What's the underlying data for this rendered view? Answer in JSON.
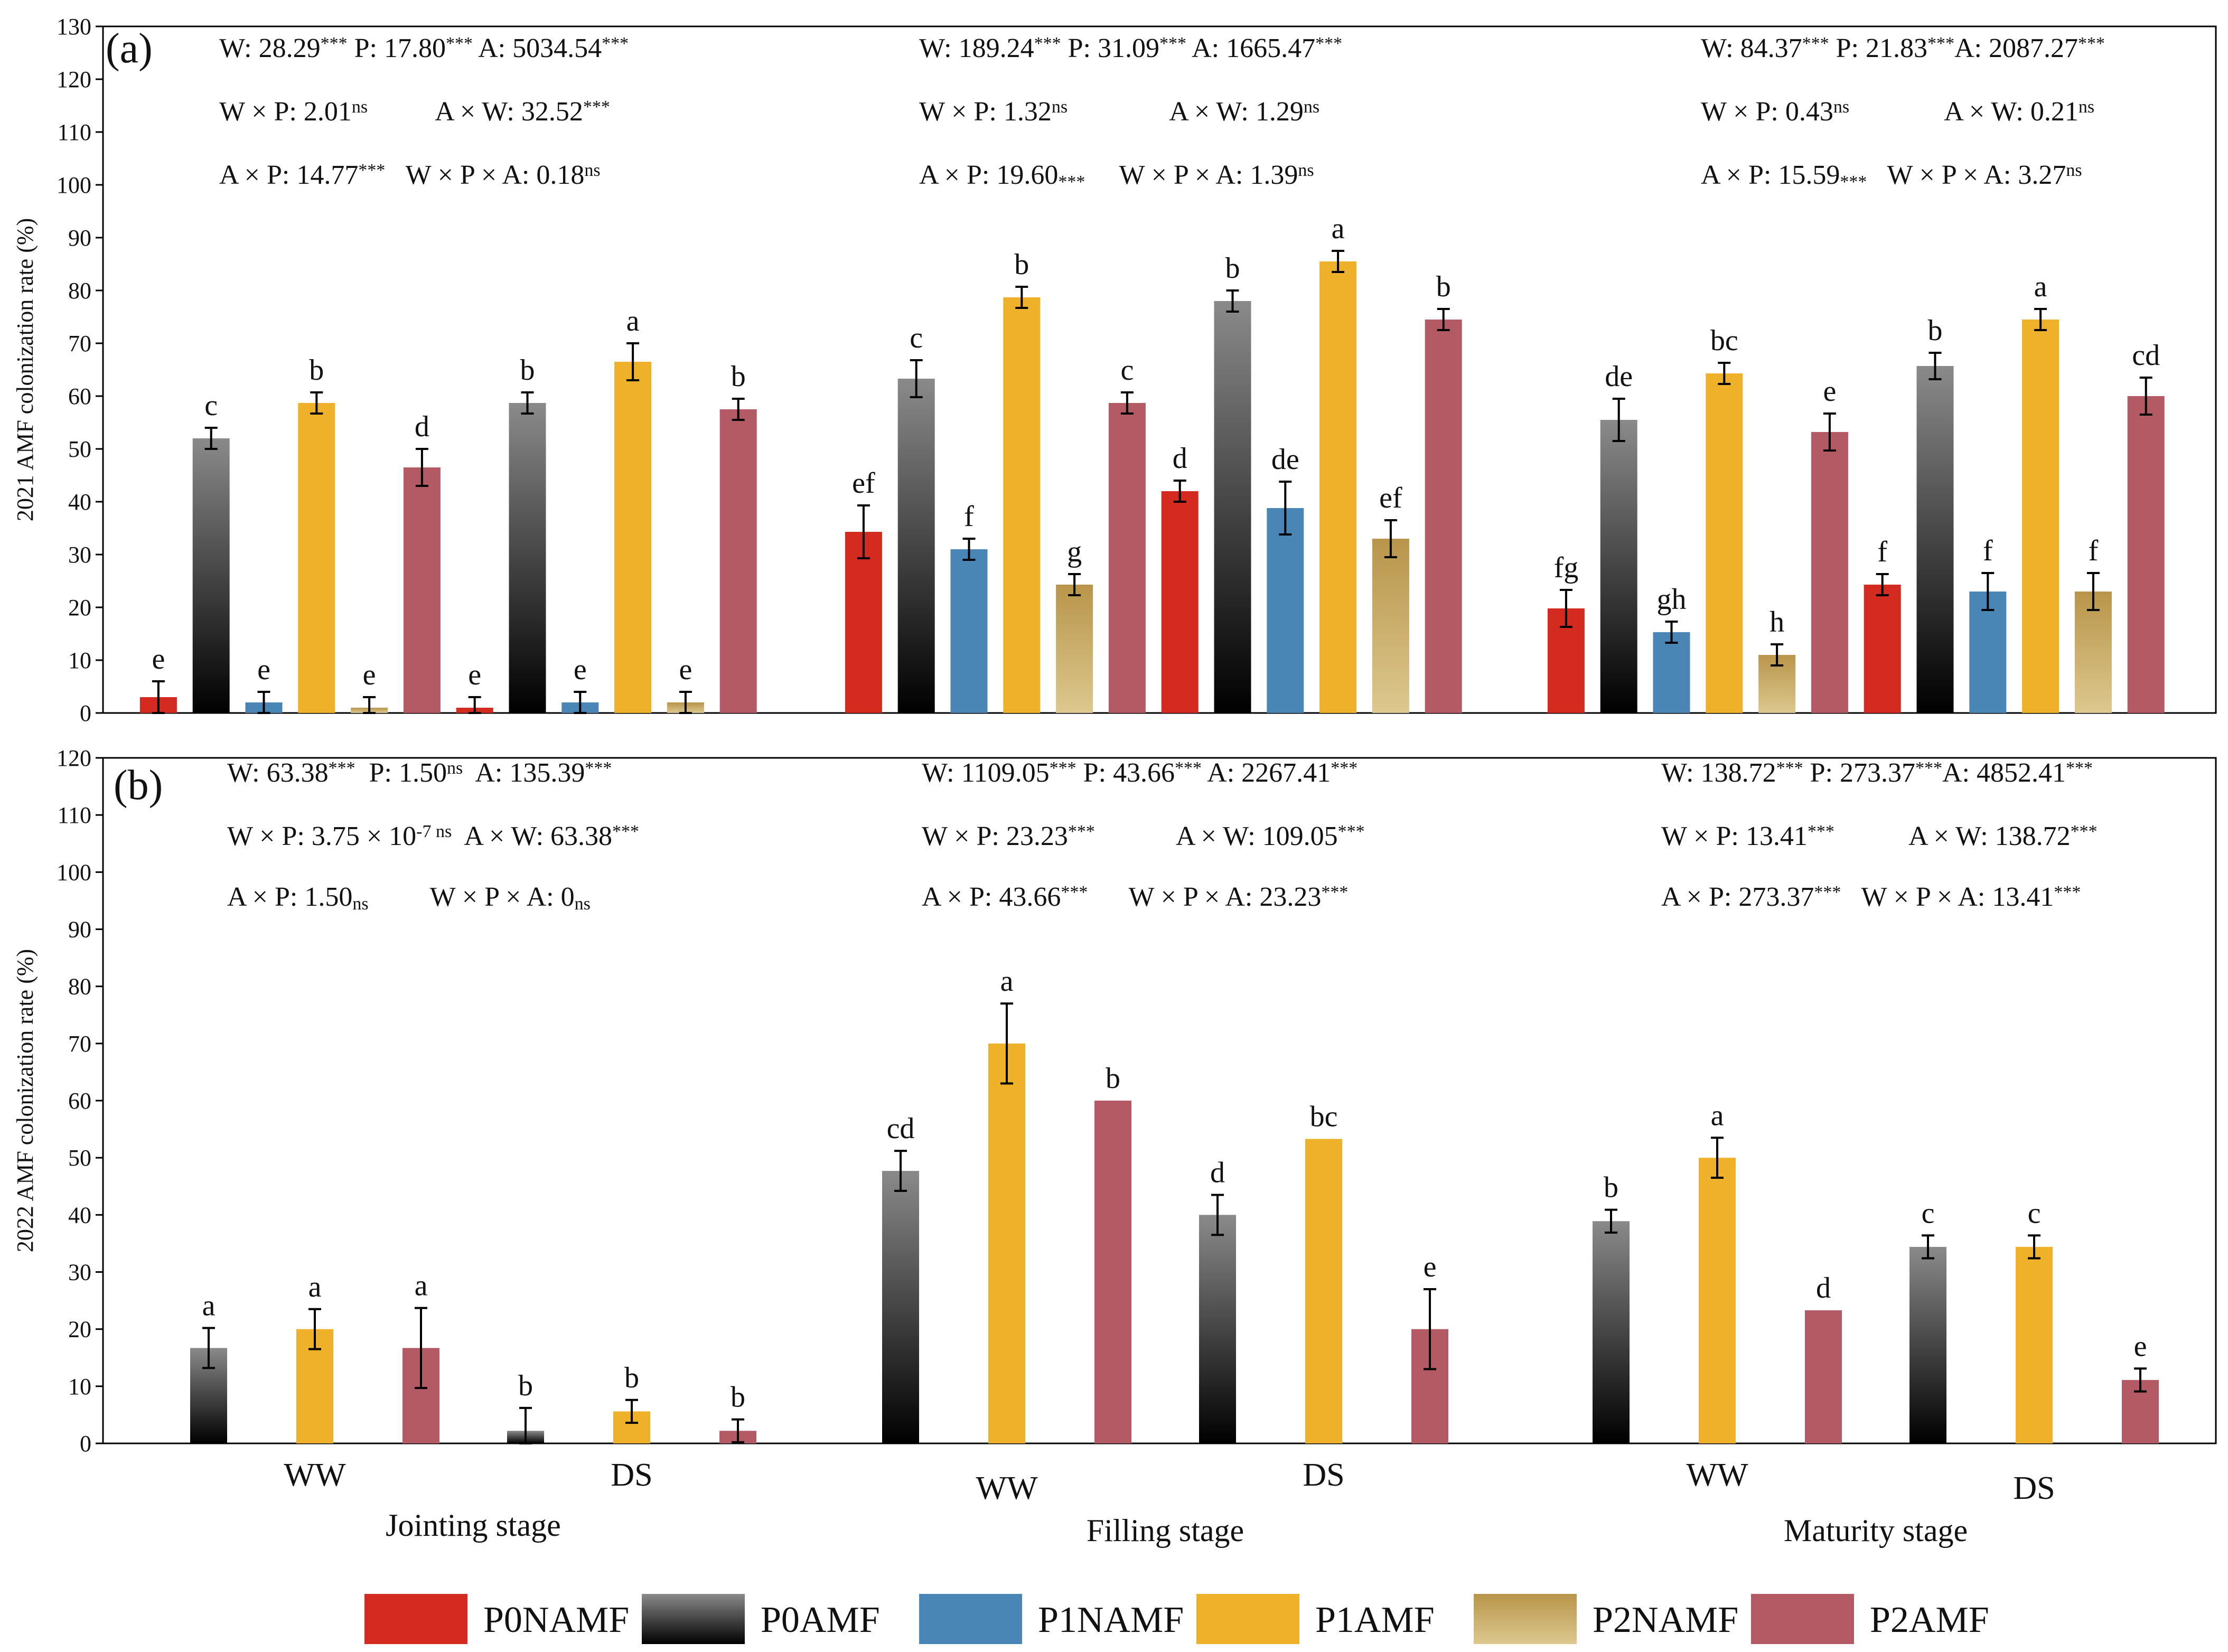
{
  "colors": {
    "P0NAMF": "#d42b20",
    "P0AMF_top": "#8a8a8a",
    "P0AMF_bottom": "#000000",
    "P1NAMF": "#4a86b5",
    "P1AMF": "#efb12a",
    "P2NAMF_top": "#b8954a",
    "P2NAMF_bottom": "#ddc88f",
    "P2AMF": "#b35a65"
  },
  "legend": [
    "P0NAMF",
    "P0AMF",
    "P1NAMF",
    "P1AMF",
    "P2NAMF",
    "P2AMF"
  ],
  "chart_data": [
    {
      "type": "bar",
      "panel": "(a)",
      "ylabel": "2021 AMF colonization rate (%)",
      "ylim": [
        0,
        130
      ],
      "yticks": [
        0,
        10,
        20,
        30,
        40,
        50,
        60,
        70,
        80,
        90,
        100,
        110,
        120,
        130
      ],
      "stages": [
        {
          "bars": [
            {
              "series": "P0NAMF",
              "value": 3,
              "err": 3,
              "letter": "e"
            },
            {
              "series": "P0AMF",
              "value": 52,
              "err": 2,
              "letter": "c"
            },
            {
              "series": "P1NAMF",
              "value": 2,
              "err": 2,
              "letter": "e"
            },
            {
              "series": "P1AMF",
              "value": 58.7,
              "err": 2,
              "letter": "b"
            },
            {
              "series": "P2NAMF",
              "value": 1,
              "err": 2,
              "letter": "e"
            },
            {
              "series": "P2AMF",
              "value": 46.5,
              "err": 3.5,
              "letter": "d"
            },
            {
              "series": "P0NAMF",
              "value": 1,
              "err": 2,
              "letter": "e"
            },
            {
              "series": "P0AMF",
              "value": 58.7,
              "err": 2,
              "letter": "b"
            },
            {
              "series": "P1NAMF",
              "value": 2,
              "err": 2,
              "letter": "e"
            },
            {
              "series": "P1AMF",
              "value": 66.5,
              "err": 3.5,
              "letter": "a"
            },
            {
              "series": "P2NAMF",
              "value": 2,
              "err": 2,
              "letter": "e"
            },
            {
              "series": "P2AMF",
              "value": 57.5,
              "err": 2,
              "letter": "b"
            }
          ],
          "stats": [
            [
              {
                "t": "W: 28.29"
              },
              {
                "t": "***",
                "sup": true
              },
              {
                "t": " P: 17.80"
              },
              {
                "t": "***",
                "sup": true
              },
              {
                "t": " A: 5034.54"
              },
              {
                "t": "***",
                "sup": true
              }
            ],
            [
              {
                "t": "W × P: 2.01"
              },
              {
                "t": "ns",
                "sup": true
              },
              {
                "t": "          A × W: 32.52"
              },
              {
                "t": "***",
                "sup": true
              }
            ],
            [
              {
                "t": "A × P: 14.77"
              },
              {
                "t": "***",
                "sup": true
              },
              {
                "t": "   W × P × A: 0.18"
              },
              {
                "t": "ns",
                "sup": true
              }
            ]
          ]
        },
        {
          "bars": [
            {
              "series": "P0NAMF",
              "value": 34.3,
              "err": 5,
              "letter": "ef"
            },
            {
              "series": "P0AMF",
              "value": 63.3,
              "err": 3.5,
              "letter": "c"
            },
            {
              "series": "P1NAMF",
              "value": 31,
              "err": 2,
              "letter": "f"
            },
            {
              "series": "P1AMF",
              "value": 78.7,
              "err": 2,
              "letter": "b"
            },
            {
              "series": "P2NAMF",
              "value": 24.3,
              "err": 2,
              "letter": "g"
            },
            {
              "series": "P2AMF",
              "value": 58.7,
              "err": 2,
              "letter": "c"
            },
            {
              "series": "P0NAMF",
              "value": 42,
              "err": 2,
              "letter": "d"
            },
            {
              "series": "P0AMF",
              "value": 78,
              "err": 2,
              "letter": "b"
            },
            {
              "series": "P1NAMF",
              "value": 38.8,
              "err": 5,
              "letter": "de"
            },
            {
              "series": "P1AMF",
              "value": 85.5,
              "err": 2,
              "letter": "a"
            },
            {
              "series": "P2NAMF",
              "value": 33,
              "err": 3.5,
              "letter": "ef"
            },
            {
              "series": "P2AMF",
              "value": 74.5,
              "err": 2,
              "letter": "b"
            }
          ],
          "stats": [
            [
              {
                "t": "W: 189.24"
              },
              {
                "t": "***",
                "sup": true
              },
              {
                "t": " P: 31.09"
              },
              {
                "t": "***",
                "sup": true
              },
              {
                "t": " A: 1665.47"
              },
              {
                "t": "***",
                "sup": true
              }
            ],
            [
              {
                "t": "W × P: 1.32"
              },
              {
                "t": "ns",
                "sup": true
              },
              {
                "t": "               A × W: 1.29"
              },
              {
                "t": "ns",
                "sup": true
              }
            ],
            [
              {
                "t": "A × P: 19.60"
              },
              {
                "t": "***",
                "sub": true
              },
              {
                "t": "     W × P × A: 1.39"
              },
              {
                "t": "ns",
                "sup": true
              }
            ]
          ]
        },
        {
          "bars": [
            {
              "series": "P0NAMF",
              "value": 19.8,
              "err": 3.5,
              "letter": "fg"
            },
            {
              "series": "P0AMF",
              "value": 55.5,
              "err": 4,
              "letter": "de"
            },
            {
              "series": "P1NAMF",
              "value": 15.3,
              "err": 2,
              "letter": "gh"
            },
            {
              "series": "P1AMF",
              "value": 64.3,
              "err": 2,
              "letter": "bc"
            },
            {
              "series": "P2NAMF",
              "value": 11,
              "err": 2,
              "letter": "h"
            },
            {
              "series": "P2AMF",
              "value": 53.2,
              "err": 3.5,
              "letter": "e"
            },
            {
              "series": "P0NAMF",
              "value": 24.3,
              "err": 2,
              "letter": "f"
            },
            {
              "series": "P0AMF",
              "value": 65.7,
              "err": 2.5,
              "letter": "b"
            },
            {
              "series": "P1NAMF",
              "value": 23,
              "err": 3.5,
              "letter": "f"
            },
            {
              "series": "P1AMF",
              "value": 74.5,
              "err": 2,
              "letter": "a"
            },
            {
              "series": "P2NAMF",
              "value": 23,
              "err": 3.5,
              "letter": "f"
            },
            {
              "series": "P2AMF",
              "value": 60,
              "err": 3.5,
              "letter": "cd"
            }
          ],
          "stats": [
            [
              {
                "t": "W: 84.37"
              },
              {
                "t": "***",
                "sup": true
              },
              {
                "t": " P: 21.83"
              },
              {
                "t": "***",
                "sup": true
              },
              {
                "t": "A: 2087.27"
              },
              {
                "t": "***",
                "sup": true
              }
            ],
            [
              {
                "t": "W × P: 0.43"
              },
              {
                "t": "ns",
                "sup": true
              },
              {
                "t": "              A × W: 0.21"
              },
              {
                "t": "ns",
                "sup": true
              }
            ],
            [
              {
                "t": "A × P: 15.59"
              },
              {
                "t": "***",
                "sub": true
              },
              {
                "t": "   W × P × A: 3.27"
              },
              {
                "t": "ns",
                "sup": true
              }
            ]
          ]
        }
      ]
    },
    {
      "type": "bar",
      "panel": "(b)",
      "ylabel": "2022 AMF colonization rate (%)",
      "ylim": [
        0,
        120
      ],
      "yticks": [
        0,
        10,
        20,
        30,
        40,
        50,
        60,
        70,
        80,
        90,
        100,
        110,
        120
      ],
      "stages": [
        {
          "name": "Jointing stage",
          "groups": [
            "WW",
            "DS"
          ],
          "bars": [
            {
              "series": "P0AMF",
              "value": 16.7,
              "err": 3.5,
              "letter": "a"
            },
            {
              "series": "P1AMF",
              "value": 20,
              "err": 3.5,
              "letter": "a"
            },
            {
              "series": "P2AMF",
              "value": 16.7,
              "err": 7,
              "letter": "a"
            },
            {
              "series": "P0AMF",
              "value": 2.2,
              "err": 4,
              "letter": "b"
            },
            {
              "series": "P1AMF",
              "value": 5.6,
              "err": 2,
              "letter": "b"
            },
            {
              "series": "P2AMF",
              "value": 2.2,
              "err": 2,
              "letter": "b"
            }
          ],
          "stats": [
            [
              {
                "t": "W: 63.38"
              },
              {
                "t": "***",
                "sup": true
              },
              {
                "t": "  P: 1.50"
              },
              {
                "t": "ns",
                "sup": true
              },
              {
                "t": "  A: 135.39"
              },
              {
                "t": "***",
                "sup": true
              }
            ],
            [
              {
                "t": "W × P: 3.75 × 10"
              },
              {
                "t": "-7",
                "sup": true
              },
              {
                "t": " ns",
                "sup": true
              },
              {
                "t": "  A × W: 63.38"
              },
              {
                "t": "***",
                "sup": true
              }
            ],
            [
              {
                "t": "A × P: 1.50"
              },
              {
                "t": "ns",
                "sub": true
              },
              {
                "t": "         W × P × A: 0"
              },
              {
                "t": "ns",
                "sub": true
              }
            ]
          ]
        },
        {
          "name": "Filling stage",
          "groups": [
            "WW",
            "DS"
          ],
          "bars": [
            {
              "series": "P0AMF",
              "value": 47.7,
              "err": 3.5,
              "letter": "cd"
            },
            {
              "series": "P1AMF",
              "value": 70,
              "err": 7,
              "letter": "a"
            },
            {
              "series": "P2AMF",
              "value": 60,
              "err": 0,
              "letter": "b"
            },
            {
              "series": "P0AMF",
              "value": 40,
              "err": 3.5,
              "letter": "d"
            },
            {
              "series": "P1AMF",
              "value": 53.3,
              "err": 0,
              "letter": "bc"
            },
            {
              "series": "P2AMF",
              "value": 20,
              "err": 7,
              "letter": "e"
            }
          ],
          "stats": [
            [
              {
                "t": "W: 1109.05"
              },
              {
                "t": "***",
                "sup": true
              },
              {
                "t": " P: 43.66"
              },
              {
                "t": "***",
                "sup": true
              },
              {
                "t": " A: 2267.41"
              },
              {
                "t": "***",
                "sup": true
              }
            ],
            [
              {
                "t": "W × P: 23.23"
              },
              {
                "t": "***",
                "sup": true
              },
              {
                "t": "            A × W: 109.05"
              },
              {
                "t": "***",
                "sup": true
              }
            ],
            [
              {
                "t": "A × P: 43.66"
              },
              {
                "t": "***",
                "sup": true
              },
              {
                "t": "      W × P × A: 23.23"
              },
              {
                "t": "***",
                "sup": true
              }
            ]
          ]
        },
        {
          "name": "Maturity stage",
          "groups": [
            "WW",
            "DS"
          ],
          "bars": [
            {
              "series": "P0AMF",
              "value": 38.9,
              "err": 2,
              "letter": "b"
            },
            {
              "series": "P1AMF",
              "value": 50,
              "err": 3.5,
              "letter": "a"
            },
            {
              "series": "P2AMF",
              "value": 23.3,
              "err": 0,
              "letter": "d"
            },
            {
              "series": "P0AMF",
              "value": 34.4,
              "err": 2,
              "letter": "c"
            },
            {
              "series": "P1AMF",
              "value": 34.4,
              "err": 2,
              "letter": "c"
            },
            {
              "series": "P2AMF",
              "value": 11.1,
              "err": 2,
              "letter": "e"
            }
          ],
          "stats": [
            [
              {
                "t": "W: 138.72"
              },
              {
                "t": "***",
                "sup": true
              },
              {
                "t": " P: 273.37"
              },
              {
                "t": "***",
                "sup": true
              },
              {
                "t": "A: 4852.41"
              },
              {
                "t": "***",
                "sup": true
              }
            ],
            [
              {
                "t": "W × P: 13.41"
              },
              {
                "t": "***",
                "sup": true
              },
              {
                "t": "           A × W: 138.72"
              },
              {
                "t": "***",
                "sup": true
              }
            ],
            [
              {
                "t": "A × P: 273.37"
              },
              {
                "t": "***",
                "sup": true
              },
              {
                "t": "   W × P × A: 13.41"
              },
              {
                "t": "***",
                "sup": true
              }
            ]
          ]
        }
      ]
    }
  ]
}
